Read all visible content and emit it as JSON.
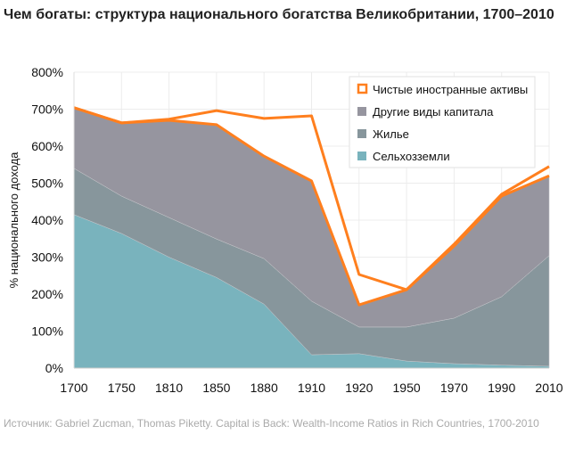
{
  "title": "Чем богаты: структура национального богатства Великобритании, 1700–2010",
  "source": "Источник: Gabriel Zucman, Thomas Piketty. Capital is Back: Wealth-Income Ratios in Rich Countries, 1700-2010",
  "chart_data": {
    "type": "area",
    "stacked": true,
    "ylabel": "% национального дохода",
    "xlabel": "",
    "ylim": [
      0,
      800
    ],
    "yticks": [
      "0%",
      "100%",
      "200%",
      "300%",
      "400%",
      "500%",
      "600%",
      "700%",
      "800%"
    ],
    "categories": [
      "1700",
      "1750",
      "1810",
      "1850",
      "1880",
      "1910",
      "1920",
      "1950",
      "1970",
      "1990",
      "2010"
    ],
    "grid": true,
    "legend_position": "top-right",
    "series": [
      {
        "name": "Сельхозземли",
        "color": "#79b3bd",
        "values": [
          415,
          364,
          300,
          245,
          173,
          36,
          39,
          19,
          12,
          8,
          5
        ]
      },
      {
        "name": "Жилье",
        "color": "#87969c",
        "values": [
          125,
          101,
          107,
          104,
          123,
          145,
          72,
          92,
          123,
          185,
          299
        ]
      },
      {
        "name": "Другие виды капитала",
        "color": "#96959f",
        "values": [
          164,
          198,
          263,
          309,
          277,
          325,
          60,
          101,
          195,
          272,
          216
        ]
      },
      {
        "name": "Чистые иностранные активы",
        "color": "#ff7f1e",
        "values": [
          0,
          0,
          3,
          38,
          102,
          176,
          82,
          0,
          5,
          5,
          25
        ]
      }
    ],
    "legend_order": [
      3,
      2,
      1,
      0
    ]
  }
}
